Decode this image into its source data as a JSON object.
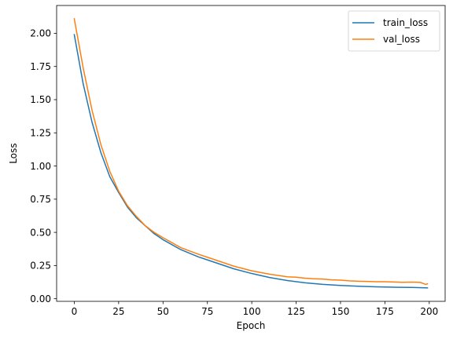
{
  "chart_data": {
    "type": "line",
    "title": "",
    "xlabel": "Epoch",
    "ylabel": "Loss",
    "xlim": [
      -9.95,
      208.95
    ],
    "ylim": [
      -0.0197,
      2.2096
    ],
    "xticks": [
      0,
      25,
      50,
      75,
      100,
      125,
      150,
      175,
      200
    ],
    "xtick_labels": [
      "0",
      "25",
      "50",
      "75",
      "100",
      "125",
      "150",
      "175",
      "200"
    ],
    "yticks": [
      0.0,
      0.25,
      0.5,
      0.75,
      1.0,
      1.25,
      1.5,
      1.75,
      2.0
    ],
    "ytick_labels": [
      "0.00",
      "0.25",
      "0.50",
      "0.75",
      "1.00",
      "1.25",
      "1.50",
      "1.75",
      "2.00"
    ],
    "grid": false,
    "legend_position": "top-right",
    "series": [
      {
        "name": "train_loss",
        "color": "#1f77b4",
        "x": [
          0,
          5,
          10,
          15,
          20,
          25,
          30,
          35,
          40,
          45,
          50,
          60,
          70,
          80,
          90,
          100,
          110,
          120,
          130,
          140,
          150,
          160,
          170,
          180,
          190,
          199
        ],
        "values": [
          1.99,
          1.62,
          1.33,
          1.1,
          0.92,
          0.8,
          0.69,
          0.61,
          0.55,
          0.49,
          0.445,
          0.37,
          0.315,
          0.27,
          0.225,
          0.19,
          0.16,
          0.137,
          0.12,
          0.108,
          0.1,
          0.094,
          0.09,
          0.087,
          0.085,
          0.082
        ]
      },
      {
        "name": "val_loss",
        "color": "#ff7f0e",
        "x": [
          0,
          5,
          10,
          15,
          20,
          25,
          30,
          35,
          40,
          45,
          50,
          60,
          70,
          80,
          90,
          100,
          110,
          120,
          125,
          130,
          135,
          140,
          145,
          150,
          155,
          160,
          165,
          170,
          175,
          180,
          185,
          190,
          195,
          198,
          199
        ],
        "values": [
          2.11,
          1.74,
          1.42,
          1.16,
          0.96,
          0.81,
          0.7,
          0.62,
          0.55,
          0.5,
          0.46,
          0.385,
          0.335,
          0.29,
          0.245,
          0.21,
          0.185,
          0.165,
          0.162,
          0.155,
          0.15,
          0.148,
          0.142,
          0.14,
          0.135,
          0.132,
          0.13,
          0.128,
          0.128,
          0.126,
          0.124,
          0.125,
          0.123,
          0.108,
          0.112
        ]
      }
    ]
  }
}
